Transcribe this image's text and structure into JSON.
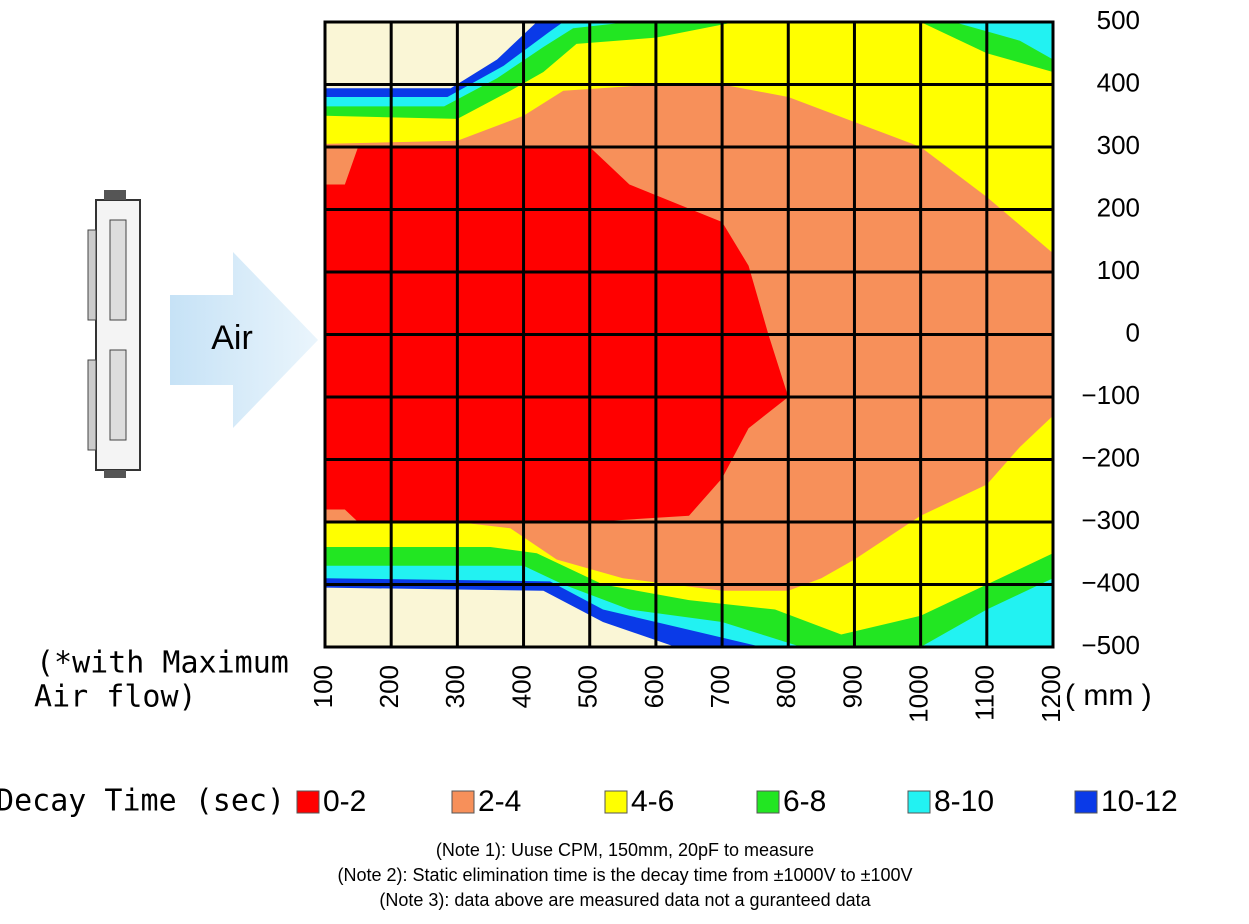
{
  "chart_data": {
    "type": "contour",
    "annotation": "Air",
    "note_lines": [
      "(*with Maximum",
      " Air flow)"
    ],
    "x_unit": "( mm )",
    "legend_title": "Decay Time (sec)",
    "notes": [
      "(Note 1): Uuse CPM, 150mm, 20pF to measure",
      "(Note 2): Static elimination time is the decay time from ±1000V to ±100V",
      "(Note 3): data above are measured data not a guranteed data"
    ],
    "xlim": [
      100,
      1200
    ],
    "ylim": [
      -500,
      500
    ],
    "xticks": [
      100,
      200,
      300,
      400,
      500,
      600,
      700,
      800,
      900,
      1000,
      1100,
      1200
    ],
    "yticks": [
      500,
      400,
      300,
      200,
      100,
      0,
      {
        "value": -100,
        "label": "−100"
      },
      {
        "value": -200,
        "label": "−200"
      },
      {
        "value": -300,
        "label": "−300"
      },
      {
        "value": -400,
        "label": "−400"
      },
      {
        "value": -500,
        "label": "−500"
      }
    ],
    "grid": true,
    "background": "#faf6d6",
    "series": [
      {
        "name": "10-12",
        "color": "#0a3ae8",
        "x": [
          100,
          290,
          360,
          420,
          1200,
          1200,
          630,
          520,
          430,
          100
        ],
        "y": [
          394,
          394,
          440,
          500,
          500,
          -500,
          -500,
          -460,
          -410,
          -405
        ]
      },
      {
        "name": "8-10",
        "color": "#22f2f2",
        "x": [
          100,
          285,
          370,
          440,
          460,
          1200,
          1200,
          760,
          640,
          520,
          440,
          100
        ],
        "y": [
          380,
          380,
          430,
          485,
          500,
          500,
          -500,
          -500,
          -470,
          -440,
          -395,
          -390
        ]
      },
      {
        "name": "6-8",
        "color": "#22e622",
        "x": [
          100,
          280,
          360,
          430,
          475,
          560,
          1050,
          1150,
          1200,
          1200,
          1100,
          1000,
          820,
          700,
          560,
          460,
          400,
          100
        ],
        "y": [
          365,
          365,
          410,
          460,
          490,
          500,
          500,
          470,
          440,
          -390,
          -440,
          -500,
          -500,
          -460,
          -440,
          -400,
          -370,
          -370
        ]
      },
      {
        "name": "4-6",
        "color": "#ffff00",
        "x": [
          100,
          300,
          380,
          430,
          480,
          600,
          720,
          1000,
          1100,
          1200,
          1200,
          1080,
          1000,
          880,
          780,
          650,
          520,
          420,
          350,
          100
        ],
        "y": [
          350,
          345,
          390,
          420,
          465,
          475,
          500,
          500,
          450,
          420,
          -350,
          -410,
          -450,
          -480,
          -440,
          -425,
          -400,
          -350,
          -340,
          -340
        ]
      },
      {
        "name": "2-4",
        "color": "#f7905a",
        "x": [
          100,
          300,
          400,
          460,
          600,
          700,
          800,
          900,
          1000,
          1100,
          1200,
          1200,
          1150,
          1100,
          1000,
          900,
          850,
          800,
          700,
          550,
          450,
          380,
          300,
          100
        ],
        "y": [
          305,
          310,
          350,
          390,
          400,
          400,
          380,
          340,
          300,
          220,
          130,
          -130,
          -180,
          -240,
          -290,
          -360,
          -390,
          -410,
          -410,
          -390,
          -360,
          -310,
          -300,
          -300
        ]
      },
      {
        "name": "0-2",
        "color": "#ff0000",
        "x": [
          100,
          130,
          150,
          500,
          530,
          560,
          700,
          740,
          770,
          800,
          740,
          700,
          650,
          500,
          150,
          130,
          100
        ],
        "y": [
          240,
          240,
          300,
          300,
          270,
          240,
          180,
          110,
          0,
          -100,
          -150,
          -230,
          -290,
          -300,
          -300,
          -280,
          -280
        ]
      }
    ]
  }
}
